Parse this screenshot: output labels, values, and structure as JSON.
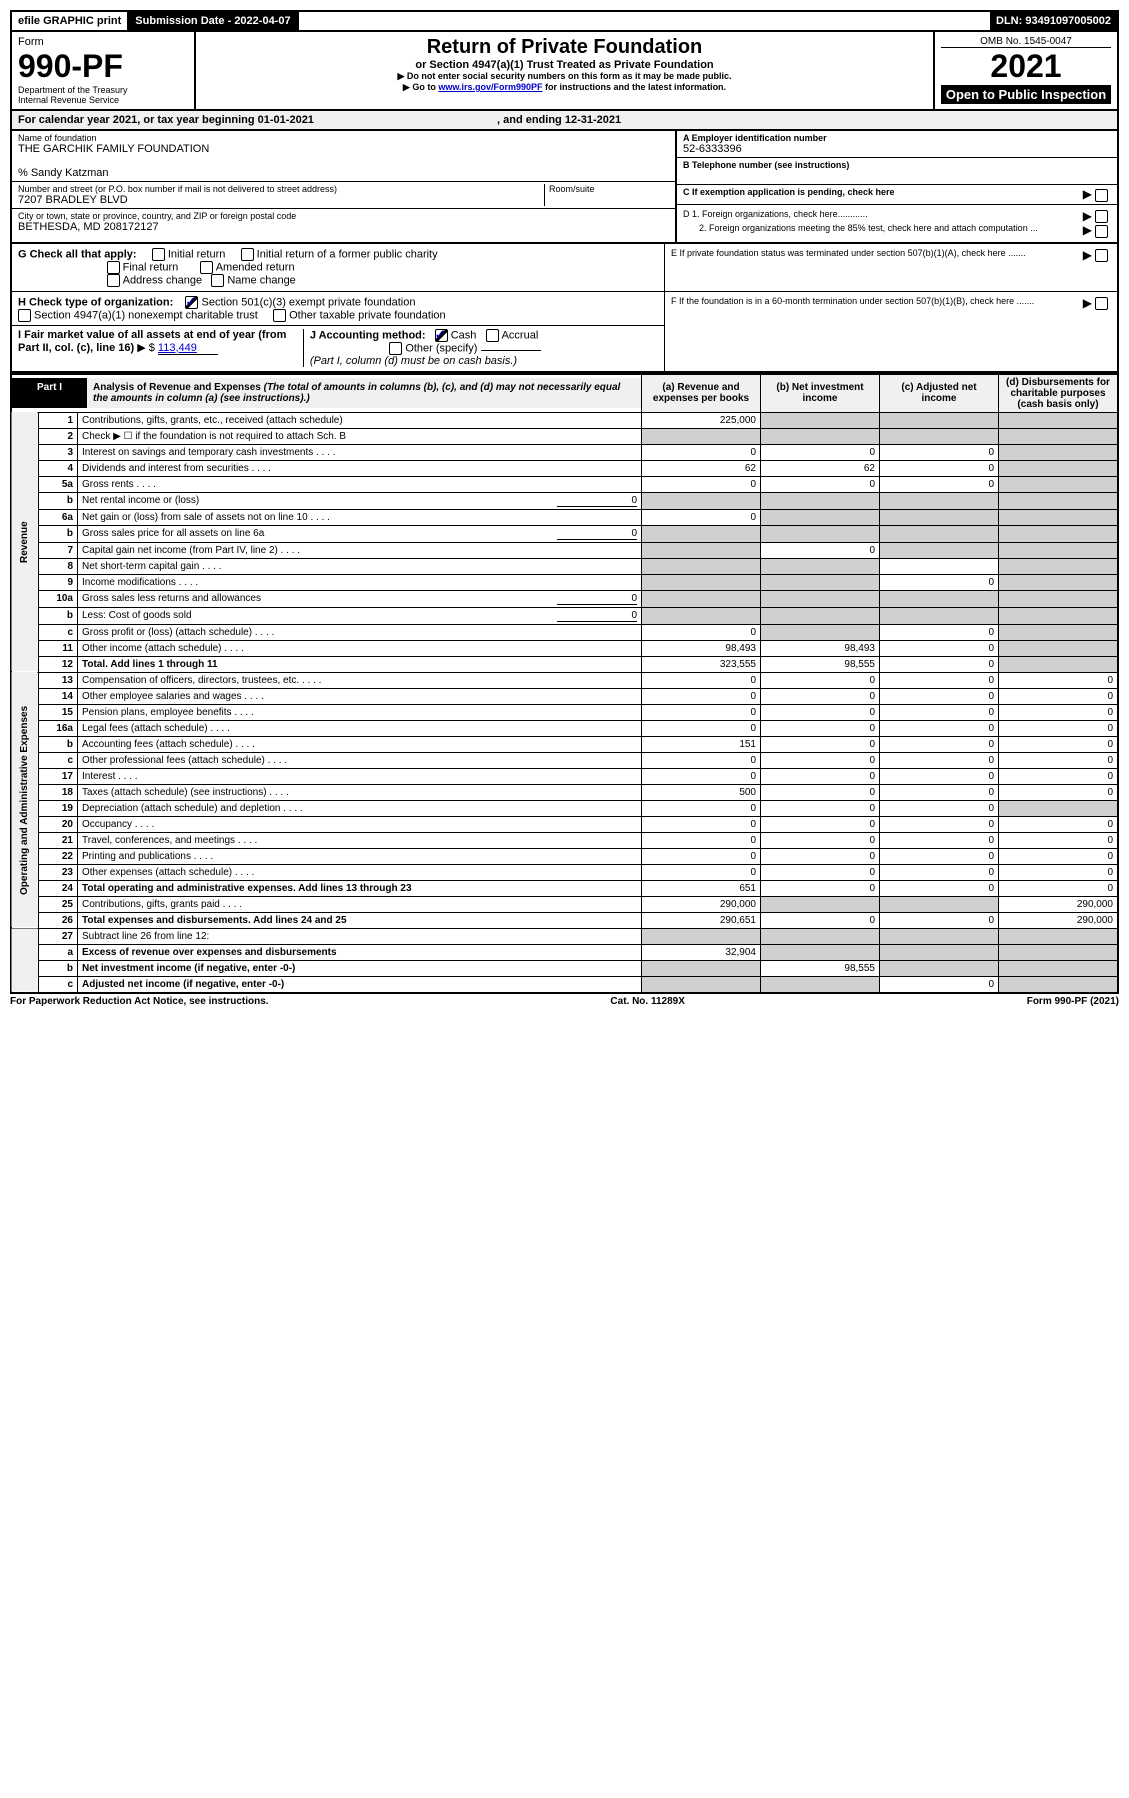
{
  "topbar": {
    "efile": "efile GRAPHIC print",
    "submission": "Submission Date - 2022-04-07",
    "dln": "DLN: 93491097005002"
  },
  "header": {
    "form": "Form",
    "formnum": "990-PF",
    "dept": "Department of the Treasury",
    "irs": "Internal Revenue Service",
    "title": "Return of Private Foundation",
    "subtitle": "or Section 4947(a)(1) Trust Treated as Private Foundation",
    "note1": "▶ Do not enter social security numbers on this form as it may be made public.",
    "note2prefix": "▶ Go to ",
    "note2link": "www.irs.gov/Form990PF",
    "note2suffix": " for instructions and the latest information.",
    "omb": "OMB No. 1545-0047",
    "year": "2021",
    "open": "Open to Public Inspection"
  },
  "calyear": {
    "prefix": "For calendar year 2021, or tax year beginning ",
    "begin": "01-01-2021",
    "mid": ", and ending ",
    "end": "12-31-2021"
  },
  "info": {
    "name_label": "Name of foundation",
    "name": "THE GARCHIK FAMILY FOUNDATION",
    "care": "% Sandy Katzman",
    "addr_label": "Number and street (or P.O. box number if mail is not delivered to street address)",
    "addr": "7207 BRADLEY BLVD",
    "room_label": "Room/suite",
    "city_label": "City or town, state or province, country, and ZIP or foreign postal code",
    "city": "BETHESDA, MD 208172127",
    "ein_label": "A Employer identification number",
    "ein": "52-6333396",
    "tel_label": "B Telephone number (see instructions)",
    "pending_label": "C If exemption application is pending, check here"
  },
  "checks": {
    "g_label": "G Check all that apply:",
    "initial": "Initial return",
    "initial_former": "Initial return of a former public charity",
    "final": "Final return",
    "amended": "Amended return",
    "addr_change": "Address change",
    "name_change": "Name change",
    "h_label": "H Check type of organization:",
    "h_501": "Section 501(c)(3) exempt private foundation",
    "h_4947": "Section 4947(a)(1) nonexempt charitable trust",
    "h_other": "Other taxable private foundation",
    "i_label": "I Fair market value of all assets at end of year (from Part II, col. (c), line 16)",
    "i_arrow": "▶ $",
    "i_value": "113,449",
    "j_label": "J Accounting method:",
    "j_cash": "Cash",
    "j_accrual": "Accrual",
    "j_other": "Other (specify)",
    "j_note": "(Part I, column (d) must be on cash basis.)",
    "d1": "D 1. Foreign organizations, check here............",
    "d2": "2. Foreign organizations meeting the 85% test, check here and attach computation ...",
    "e": "E  If private foundation status was terminated under section 507(b)(1)(A), check here .......",
    "f": "F  If the foundation is in a 60-month termination under section 507(b)(1)(B), check here .......",
    "arrow": "▶"
  },
  "part1": {
    "label": "Part I",
    "title": "Analysis of Revenue and Expenses",
    "title_note": " (The total of amounts in columns (b), (c), and (d) may not necessarily equal the amounts in column (a) (see instructions).)",
    "cols": {
      "a": "(a) Revenue and expenses per books",
      "b": "(b) Net investment income",
      "c": "(c) Adjusted net income",
      "d": "(d) Disbursements for charitable purposes (cash basis only)"
    }
  },
  "sections": {
    "revenue": "Revenue",
    "expenses": "Operating and Administrative Expenses"
  },
  "lines": {
    "1": {
      "n": "1",
      "t": "Contributions, gifts, grants, etc., received (attach schedule)",
      "a": "225,000"
    },
    "2": {
      "n": "2",
      "t": "Check ▶ ☐ if the foundation is not required to attach Sch. B"
    },
    "3": {
      "n": "3",
      "t": "Interest on savings and temporary cash investments",
      "a": "0",
      "b": "0",
      "c": "0"
    },
    "4": {
      "n": "4",
      "t": "Dividends and interest from securities",
      "a": "62",
      "b": "62",
      "c": "0"
    },
    "5a": {
      "n": "5a",
      "t": "Gross rents",
      "a": "0",
      "b": "0",
      "c": "0"
    },
    "5b": {
      "n": "b",
      "t": "Net rental income or (loss)",
      "inline": "0"
    },
    "6a": {
      "n": "6a",
      "t": "Net gain or (loss) from sale of assets not on line 10",
      "a": "0"
    },
    "6b": {
      "n": "b",
      "t": "Gross sales price for all assets on line 6a",
      "inline": "0"
    },
    "7": {
      "n": "7",
      "t": "Capital gain net income (from Part IV, line 2)",
      "b": "0"
    },
    "8": {
      "n": "8",
      "t": "Net short-term capital gain"
    },
    "9": {
      "n": "9",
      "t": "Income modifications",
      "c": "0"
    },
    "10a": {
      "n": "10a",
      "t": "Gross sales less returns and allowances",
      "inline": "0"
    },
    "10b": {
      "n": "b",
      "t": "Less: Cost of goods sold",
      "inline": "0"
    },
    "10c": {
      "n": "c",
      "t": "Gross profit or (loss) (attach schedule)",
      "a": "0",
      "c": "0"
    },
    "11": {
      "n": "11",
      "t": "Other income (attach schedule)",
      "a": "98,493",
      "b": "98,493",
      "c": "0"
    },
    "12": {
      "n": "12",
      "t": "Total. Add lines 1 through 11",
      "a": "323,555",
      "b": "98,555",
      "c": "0",
      "bold": true
    },
    "13": {
      "n": "13",
      "t": "Compensation of officers, directors, trustees, etc.",
      "a": "0",
      "b": "0",
      "c": "0",
      "d": "0"
    },
    "14": {
      "n": "14",
      "t": "Other employee salaries and wages",
      "a": "0",
      "b": "0",
      "c": "0",
      "d": "0"
    },
    "15": {
      "n": "15",
      "t": "Pension plans, employee benefits",
      "a": "0",
      "b": "0",
      "c": "0",
      "d": "0"
    },
    "16a": {
      "n": "16a",
      "t": "Legal fees (attach schedule)",
      "a": "0",
      "b": "0",
      "c": "0",
      "d": "0"
    },
    "16b": {
      "n": "b",
      "t": "Accounting fees (attach schedule)",
      "a": "151",
      "b": "0",
      "c": "0",
      "d": "0"
    },
    "16c": {
      "n": "c",
      "t": "Other professional fees (attach schedule)",
      "a": "0",
      "b": "0",
      "c": "0",
      "d": "0"
    },
    "17": {
      "n": "17",
      "t": "Interest",
      "a": "0",
      "b": "0",
      "c": "0",
      "d": "0"
    },
    "18": {
      "n": "18",
      "t": "Taxes (attach schedule) (see instructions)",
      "a": "500",
      "b": "0",
      "c": "0",
      "d": "0"
    },
    "19": {
      "n": "19",
      "t": "Depreciation (attach schedule) and depletion",
      "a": "0",
      "b": "0",
      "c": "0"
    },
    "20": {
      "n": "20",
      "t": "Occupancy",
      "a": "0",
      "b": "0",
      "c": "0",
      "d": "0"
    },
    "21": {
      "n": "21",
      "t": "Travel, conferences, and meetings",
      "a": "0",
      "b": "0",
      "c": "0",
      "d": "0"
    },
    "22": {
      "n": "22",
      "t": "Printing and publications",
      "a": "0",
      "b": "0",
      "c": "0",
      "d": "0"
    },
    "23": {
      "n": "23",
      "t": "Other expenses (attach schedule)",
      "a": "0",
      "b": "0",
      "c": "0",
      "d": "0"
    },
    "24": {
      "n": "24",
      "t": "Total operating and administrative expenses. Add lines 13 through 23",
      "a": "651",
      "b": "0",
      "c": "0",
      "d": "0",
      "bold": true
    },
    "25": {
      "n": "25",
      "t": "Contributions, gifts, grants paid",
      "a": "290,000",
      "d": "290,000"
    },
    "26": {
      "n": "26",
      "t": "Total expenses and disbursements. Add lines 24 and 25",
      "a": "290,651",
      "b": "0",
      "c": "0",
      "d": "290,000",
      "bold": true
    },
    "27": {
      "n": "27",
      "t": "Subtract line 26 from line 12:"
    },
    "27a": {
      "n": "a",
      "t": "Excess of revenue over expenses and disbursements",
      "a": "32,904",
      "bold": true
    },
    "27b": {
      "n": "b",
      "t": "Net investment income (if negative, enter -0-)",
      "b": "98,555",
      "bold": true
    },
    "27c": {
      "n": "c",
      "t": "Adjusted net income (if negative, enter -0-)",
      "c": "0",
      "bold": true
    }
  },
  "footer": {
    "left": "For Paperwork Reduction Act Notice, see instructions.",
    "mid": "Cat. No. 11289X",
    "right": "Form 990-PF (2021)"
  },
  "colors": {
    "link": "#0000cc",
    "gray": "#d0d0d0",
    "lightgray": "#f0f0f0"
  }
}
